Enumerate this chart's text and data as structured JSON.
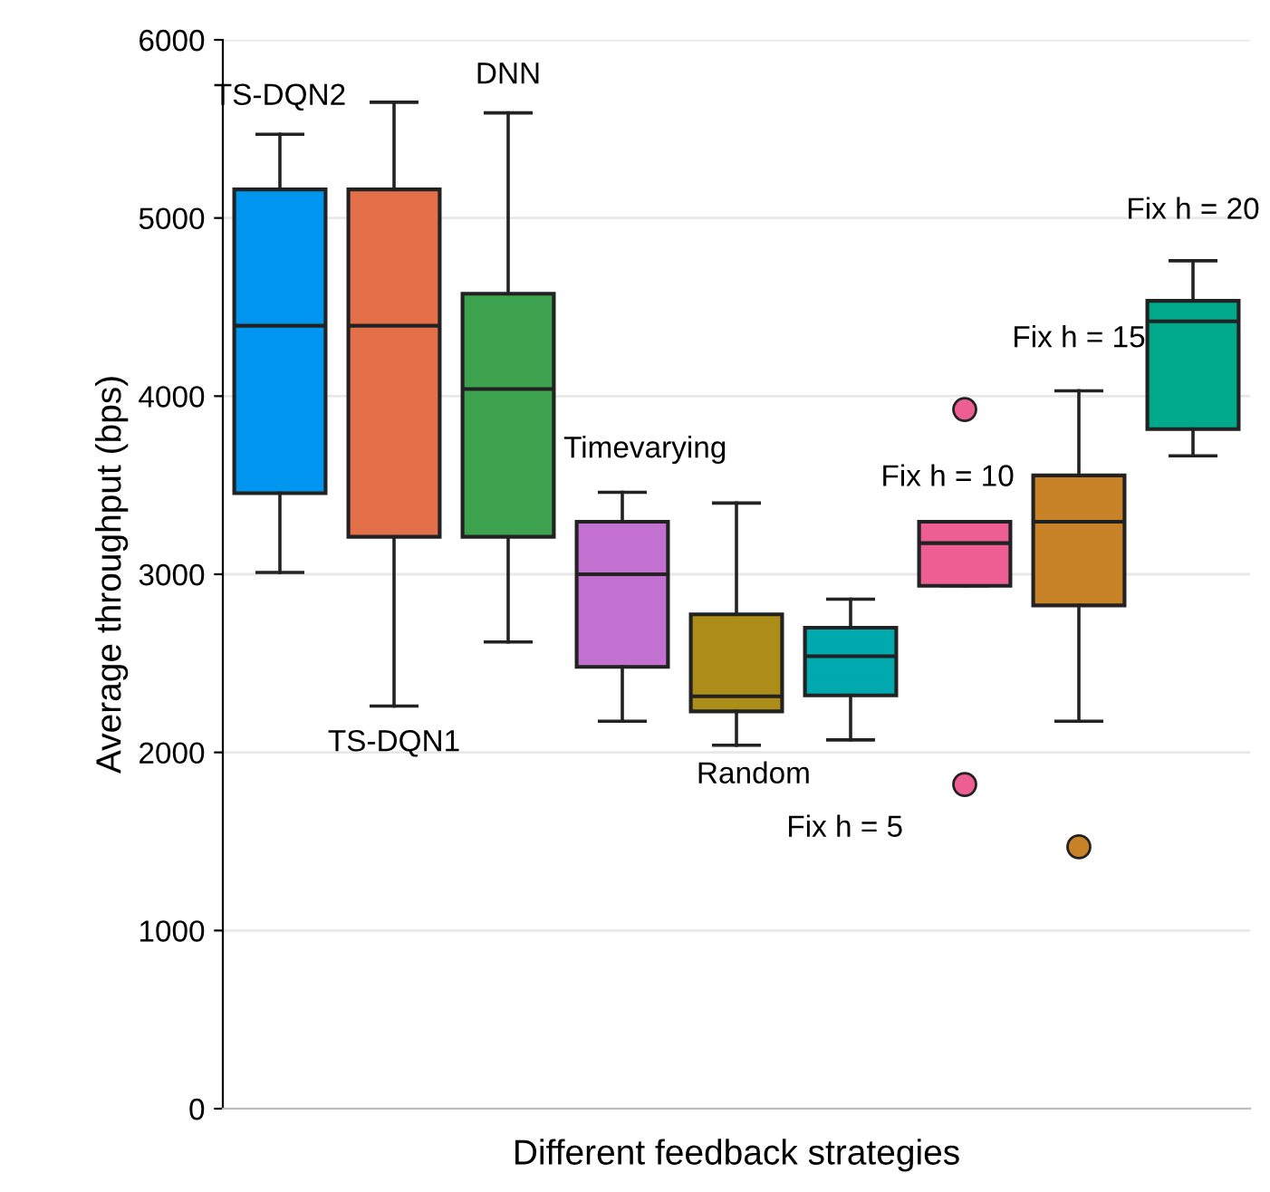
{
  "chart_data": {
    "type": "box",
    "xlabel": "Different feedback strategies",
    "ylabel": "Average throughput (bps)",
    "categories": [
      "TS-DQN2",
      "TS-DQN1",
      "DNN",
      "Timevarying",
      "Random",
      "Fix h = 5",
      "Fix h = 10",
      "Fix h = 15",
      "Fix h = 20"
    ],
    "colors": [
      "#0096f0",
      "#e4704a",
      "#3ca24e",
      "#c371d0",
      "#ad8d1a",
      "#00a9ad",
      "#ed5e93",
      "#c88227",
      "#00a98b"
    ],
    "ylim": [
      0,
      6000
    ],
    "yticks": [
      0,
      1000,
      2000,
      3000,
      4000,
      5000,
      6000
    ],
    "grid": "y",
    "boxes": [
      {
        "low": 3010,
        "q1": 3455,
        "median": 4395,
        "q3": 5160,
        "high": 5470
      },
      {
        "low": 2260,
        "q1": 3210,
        "median": 4395,
        "q3": 5160,
        "high": 5650
      },
      {
        "low": 2620,
        "q1": 3210,
        "median": 4040,
        "q3": 4575,
        "high": 5590
      },
      {
        "low": 2175,
        "q1": 2480,
        "median": 3000,
        "q3": 3295,
        "high": 3460
      },
      {
        "low": 2040,
        "q1": 2230,
        "median": 2315,
        "q3": 2775,
        "high": 3400
      },
      {
        "low": 2070,
        "q1": 2320,
        "median": 2540,
        "q3": 2700,
        "high": 2860
      },
      {
        "low": 2935,
        "q1": 2935,
        "median": 3175,
        "q3": 3295,
        "high": 3295,
        "outliers": [
          3925,
          1820
        ]
      },
      {
        "low": 2175,
        "q1": 2825,
        "median": 3295,
        "q3": 3555,
        "high": 4030,
        "outliers": [
          1470
        ]
      },
      {
        "low": 3665,
        "q1": 3815,
        "median": 4420,
        "q3": 4535,
        "high": 4760
      }
    ]
  }
}
